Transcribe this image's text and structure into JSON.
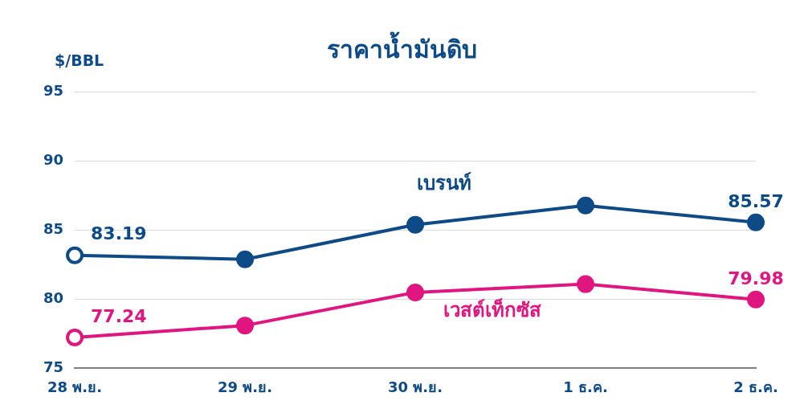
{
  "chart_data": {
    "type": "line",
    "title": "ราคาน้ำมันดิบ",
    "ylabel": "$/BBL",
    "categories": [
      "28 พ.ย.",
      "29 พ.ย.",
      "30 พ.ย.",
      "1 ธ.ค.",
      "2 ธ.ค."
    ],
    "series": [
      {
        "name": "เบรนท์",
        "color": "#0d4a86",
        "values": [
          83.19,
          82.9,
          85.4,
          86.8,
          85.57
        ],
        "value_labels": [
          "83.19",
          null,
          null,
          null,
          "85.57"
        ]
      },
      {
        "name": "เวสต์เท็กซัส",
        "color": "#e0157f",
        "values": [
          77.24,
          78.1,
          80.5,
          81.1,
          79.98
        ],
        "value_labels": [
          "77.24",
          null,
          null,
          null,
          "79.98"
        ]
      }
    ],
    "ylim": [
      75,
      95
    ],
    "yticks": [
      75,
      80,
      85,
      90,
      95
    ],
    "grid": "y",
    "marker": "circle",
    "line_style": "solid",
    "legend": false
  }
}
